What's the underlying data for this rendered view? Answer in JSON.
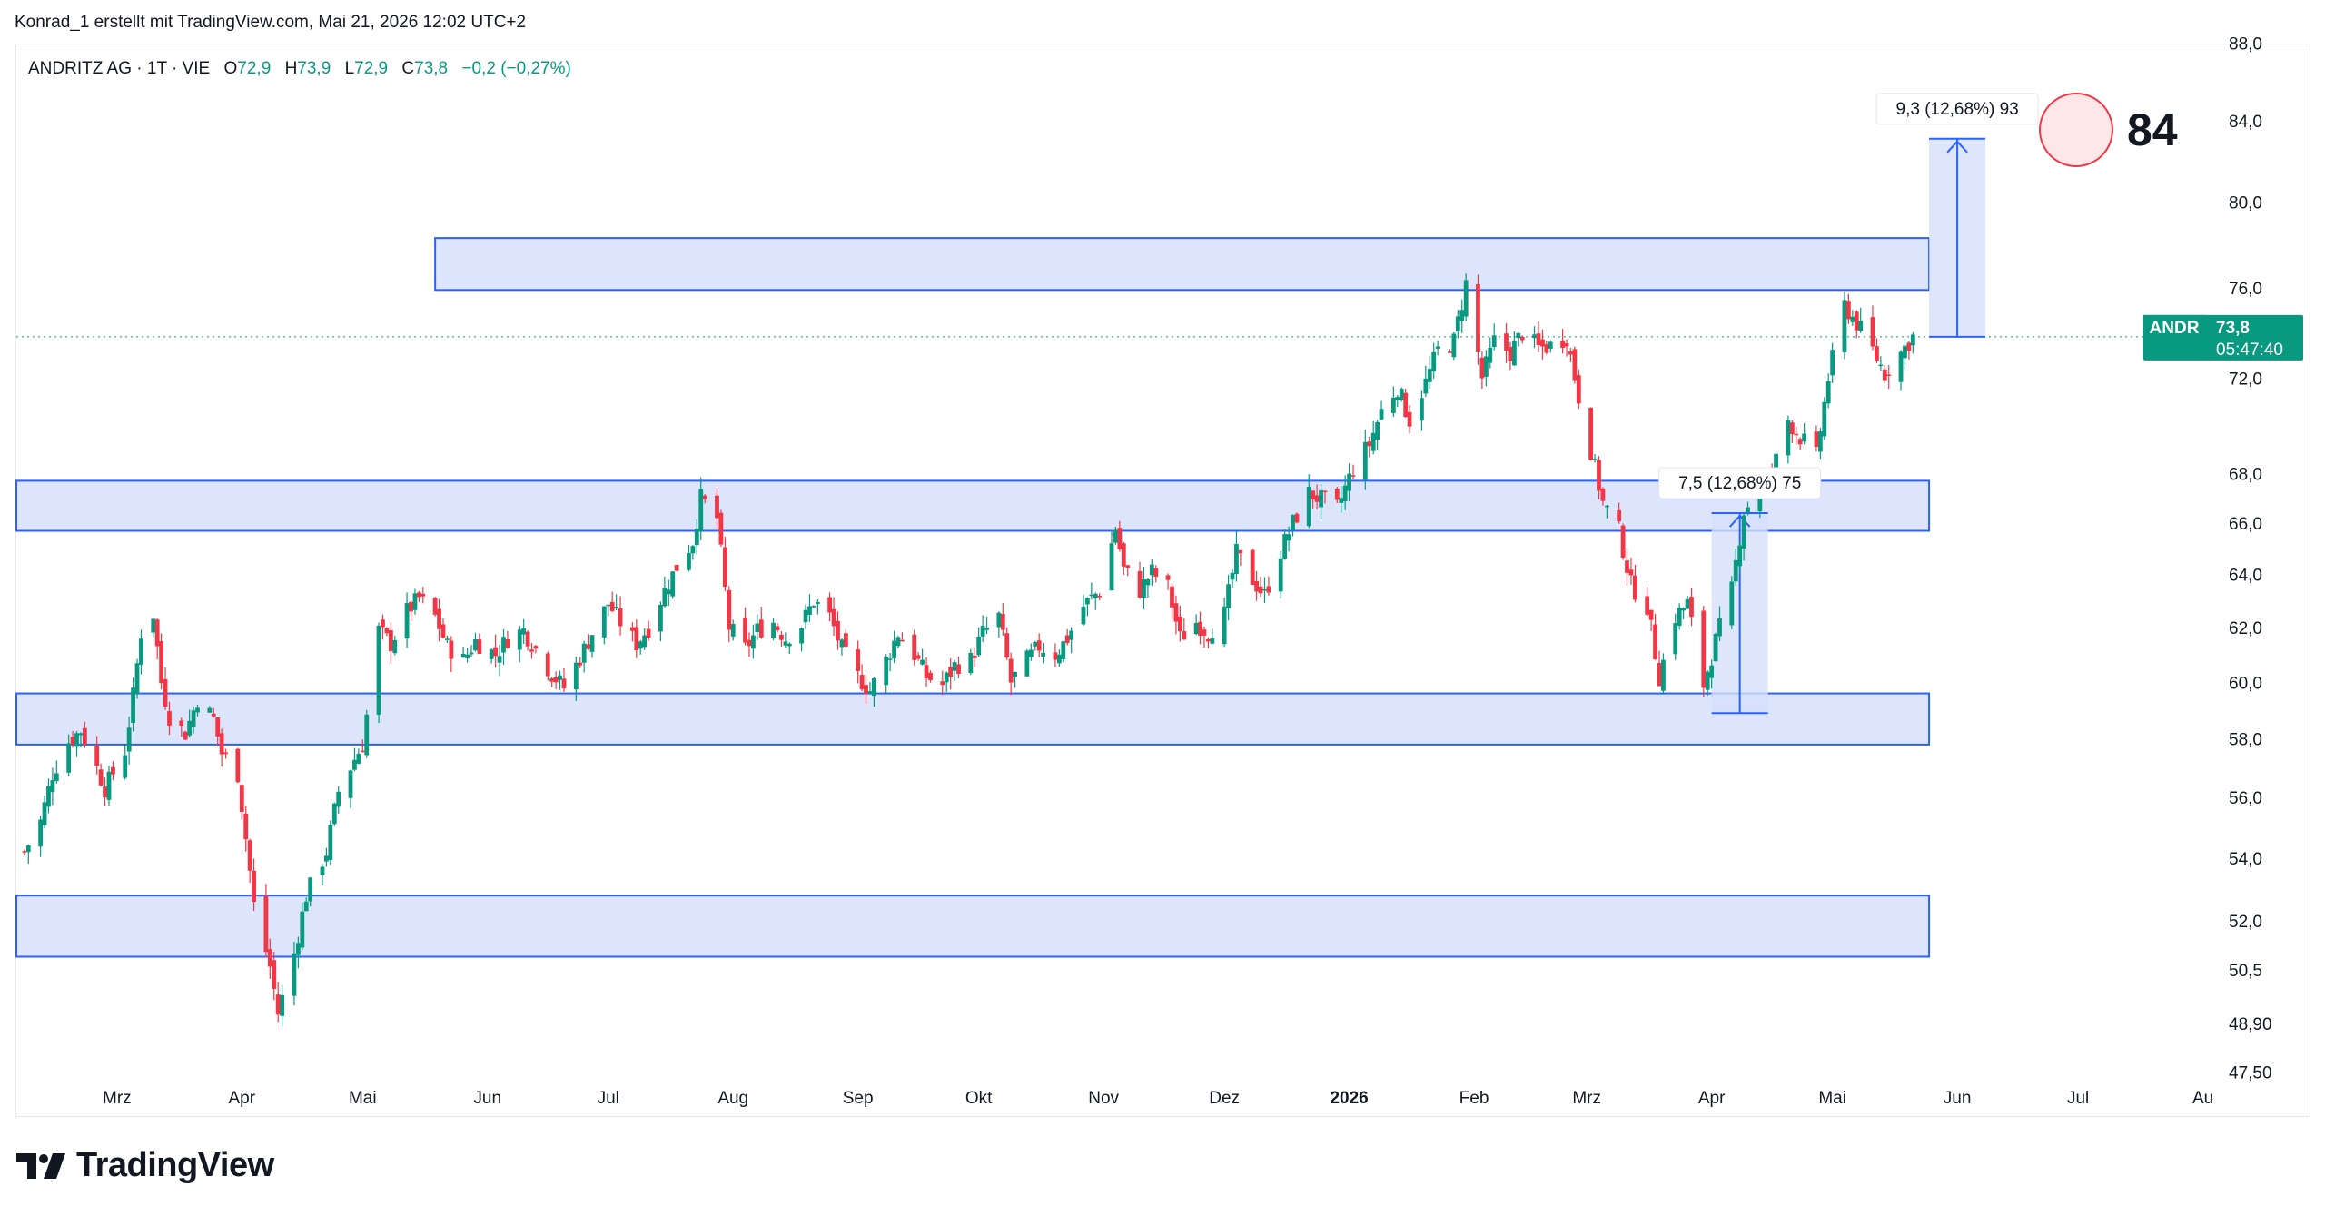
{
  "header": {
    "attribution": "Konrad_1 erstellt mit TradingView.com, Mai 21, 2026 12:02 UTC+2"
  },
  "legend": {
    "symbol": "ANDRITZ AG · 1T · VIE",
    "open_label": "O",
    "open": "72,9",
    "high_label": "H",
    "high": "73,9",
    "low_label": "L",
    "low": "72,9",
    "close_label": "C",
    "close": "73,8",
    "change": "−0,2 (−0,27%)"
  },
  "price_tag": {
    "ticker": "ANDR",
    "price": "73,8",
    "countdown": "05:47:40"
  },
  "badge_number": "84",
  "logo_text": "TradingView",
  "colors": {
    "up": "#089981",
    "down": "#f23645",
    "zone_fill": "#d6e0fb",
    "zone_border": "#2962ff",
    "measure_fill": "#d6e0fb",
    "badge_stroke": "#f23645",
    "badge_fill": "#fde7e9",
    "price_tag_bg": "#089981"
  },
  "chart_data": {
    "type": "candlestick",
    "y_axis": {
      "ticks": [
        {
          "label": "88,0",
          "value": 88.0
        },
        {
          "label": "84,0",
          "value": 84.0
        },
        {
          "label": "80,0",
          "value": 80.0
        },
        {
          "label": "76,0",
          "value": 76.0
        },
        {
          "label": "72,0",
          "value": 72.0
        },
        {
          "label": "68,0",
          "value": 68.0
        },
        {
          "label": "66,0",
          "value": 66.0
        },
        {
          "label": "64,0",
          "value": 64.0
        },
        {
          "label": "62,0",
          "value": 62.0
        },
        {
          "label": "60,0",
          "value": 60.0
        },
        {
          "label": "58,0",
          "value": 58.0
        },
        {
          "label": "56,0",
          "value": 56.0
        },
        {
          "label": "54,0",
          "value": 54.0
        },
        {
          "label": "52,0",
          "value": 52.0
        },
        {
          "label": "50,5",
          "value": 50.5
        },
        {
          "label": "48,90",
          "value": 48.9
        },
        {
          "label": "47,50",
          "value": 47.5
        }
      ],
      "scale": "log"
    },
    "x_axis": {
      "ticks": [
        {
          "label": "Mrz",
          "date": "2025-03-01",
          "bold": false
        },
        {
          "label": "Apr",
          "date": "2025-04-01",
          "bold": false
        },
        {
          "label": "Mai",
          "date": "2025-05-01",
          "bold": false
        },
        {
          "label": "Jun",
          "date": "2025-06-01",
          "bold": false
        },
        {
          "label": "Jul",
          "date": "2025-07-01",
          "bold": false
        },
        {
          "label": "Aug",
          "date": "2025-08-01",
          "bold": false
        },
        {
          "label": "Sep",
          "date": "2025-09-01",
          "bold": false
        },
        {
          "label": "Okt",
          "date": "2025-10-01",
          "bold": false
        },
        {
          "label": "Nov",
          "date": "2025-11-01",
          "bold": false
        },
        {
          "label": "Dez",
          "date": "2025-12-01",
          "bold": false
        },
        {
          "label": "2026",
          "date": "2026-01-01",
          "bold": true
        },
        {
          "label": "Feb",
          "date": "2026-02-01",
          "bold": false
        },
        {
          "label": "Mrz",
          "date": "2026-03-01",
          "bold": false
        },
        {
          "label": "Apr",
          "date": "2026-04-01",
          "bold": false
        },
        {
          "label": "Mai",
          "date": "2026-05-01",
          "bold": false
        },
        {
          "label": "Jun",
          "date": "2026-06-01",
          "bold": false
        },
        {
          "label": "Jul",
          "date": "2026-07-01",
          "bold": false
        },
        {
          "label": "Au",
          "date": "2026-08-01",
          "bold": false
        }
      ],
      "range": [
        "2025-02-04",
        "2026-08-02"
      ]
    },
    "last_price": 73.8,
    "price_series": [
      {
        "date": "2025-02-06",
        "close": 54.2
      },
      {
        "date": "2025-02-10",
        "close": 55.2
      },
      {
        "date": "2025-02-13",
        "close": 56.8
      },
      {
        "date": "2025-02-17",
        "close": 57.9
      },
      {
        "date": "2025-02-20",
        "close": 58.3
      },
      {
        "date": "2025-02-24",
        "close": 57.0
      },
      {
        "date": "2025-02-26",
        "close": 56.3
      },
      {
        "date": "2025-03-03",
        "close": 57.6
      },
      {
        "date": "2025-03-05",
        "close": 59.5
      },
      {
        "date": "2025-03-07",
        "close": 61.8
      },
      {
        "date": "2025-03-10",
        "close": 62.5
      },
      {
        "date": "2025-03-12",
        "close": 60.0
      },
      {
        "date": "2025-03-14",
        "close": 58.8
      },
      {
        "date": "2025-03-18",
        "close": 58.2
      },
      {
        "date": "2025-03-21",
        "close": 59.4
      },
      {
        "date": "2025-03-25",
        "close": 58.7
      },
      {
        "date": "2025-03-27",
        "close": 57.5
      },
      {
        "date": "2025-03-31",
        "close": 56.8
      },
      {
        "date": "2025-04-04",
        "close": 52.5
      },
      {
        "date": "2025-04-08",
        "close": 50.6
      },
      {
        "date": "2025-04-10",
        "close": 49.2
      },
      {
        "date": "2025-04-14",
        "close": 51.0
      },
      {
        "date": "2025-04-17",
        "close": 52.8
      },
      {
        "date": "2025-04-22",
        "close": 54.2
      },
      {
        "date": "2025-04-25",
        "close": 56.2
      },
      {
        "date": "2025-04-29",
        "close": 57.3
      },
      {
        "date": "2025-05-01",
        "close": 57.8
      },
      {
        "date": "2025-05-05",
        "close": 61.9
      },
      {
        "date": "2025-05-08",
        "close": 61.4
      },
      {
        "date": "2025-05-12",
        "close": 62.6
      },
      {
        "date": "2025-05-15",
        "close": 63.1
      },
      {
        "date": "2025-05-19",
        "close": 62.4
      },
      {
        "date": "2025-05-22",
        "close": 61.3
      },
      {
        "date": "2025-05-26",
        "close": 60.8
      },
      {
        "date": "2025-05-29",
        "close": 61.5
      },
      {
        "date": "2025-06-03",
        "close": 61.0
      },
      {
        "date": "2025-06-06",
        "close": 61.6
      },
      {
        "date": "2025-06-10",
        "close": 61.9
      },
      {
        "date": "2025-06-13",
        "close": 61.2
      },
      {
        "date": "2025-06-17",
        "close": 60.3
      },
      {
        "date": "2025-06-20",
        "close": 59.8
      },
      {
        "date": "2025-06-24",
        "close": 60.9
      },
      {
        "date": "2025-06-27",
        "close": 61.8
      },
      {
        "date": "2025-07-01",
        "close": 62.9
      },
      {
        "date": "2025-07-04",
        "close": 62.2
      },
      {
        "date": "2025-07-08",
        "close": 61.4
      },
      {
        "date": "2025-07-11",
        "close": 62.0
      },
      {
        "date": "2025-07-15",
        "close": 63.4
      },
      {
        "date": "2025-07-18",
        "close": 64.3
      },
      {
        "date": "2025-07-22",
        "close": 65.3
      },
      {
        "date": "2025-07-24",
        "close": 67.0
      },
      {
        "date": "2025-07-28",
        "close": 66.2
      },
      {
        "date": "2025-07-31",
        "close": 62.0
      },
      {
        "date": "2025-08-04",
        "close": 61.2
      },
      {
        "date": "2025-08-07",
        "close": 61.9
      },
      {
        "date": "2025-08-11",
        "close": 62.2
      },
      {
        "date": "2025-08-14",
        "close": 61.6
      },
      {
        "date": "2025-08-18",
        "close": 62.1
      },
      {
        "date": "2025-08-21",
        "close": 63.0
      },
      {
        "date": "2025-08-25",
        "close": 62.4
      },
      {
        "date": "2025-08-28",
        "close": 61.2
      },
      {
        "date": "2025-09-01",
        "close": 60.2
      },
      {
        "date": "2025-09-04",
        "close": 59.7
      },
      {
        "date": "2025-09-08",
        "close": 60.8
      },
      {
        "date": "2025-09-11",
        "close": 61.8
      },
      {
        "date": "2025-09-15",
        "close": 61.0
      },
      {
        "date": "2025-09-18",
        "close": 60.2
      },
      {
        "date": "2025-09-22",
        "close": 59.9
      },
      {
        "date": "2025-09-25",
        "close": 60.6
      },
      {
        "date": "2025-09-29",
        "close": 60.8
      },
      {
        "date": "2025-10-02",
        "close": 61.8
      },
      {
        "date": "2025-10-06",
        "close": 62.4
      },
      {
        "date": "2025-10-09",
        "close": 60.0
      },
      {
        "date": "2025-10-13",
        "close": 60.8
      },
      {
        "date": "2025-10-16",
        "close": 61.3
      },
      {
        "date": "2025-10-20",
        "close": 61.0
      },
      {
        "date": "2025-10-23",
        "close": 61.6
      },
      {
        "date": "2025-10-27",
        "close": 62.8
      },
      {
        "date": "2025-10-31",
        "close": 63.4
      },
      {
        "date": "2025-11-04",
        "close": 65.8
      },
      {
        "date": "2025-11-06",
        "close": 64.2
      },
      {
        "date": "2025-11-10",
        "close": 63.4
      },
      {
        "date": "2025-11-13",
        "close": 64.1
      },
      {
        "date": "2025-11-17",
        "close": 63.5
      },
      {
        "date": "2025-11-20",
        "close": 61.6
      },
      {
        "date": "2025-11-24",
        "close": 62.2
      },
      {
        "date": "2025-11-27",
        "close": 61.8
      },
      {
        "date": "2025-12-01",
        "close": 62.5
      },
      {
        "date": "2025-12-04",
        "close": 64.8
      },
      {
        "date": "2025-12-08",
        "close": 63.8
      },
      {
        "date": "2025-12-11",
        "close": 63.2
      },
      {
        "date": "2025-12-15",
        "close": 64.9
      },
      {
        "date": "2025-12-18",
        "close": 66.0
      },
      {
        "date": "2025-12-22",
        "close": 67.2
      },
      {
        "date": "2025-12-29",
        "close": 66.6
      },
      {
        "date": "2026-01-02",
        "close": 68.2
      },
      {
        "date": "2026-01-06",
        "close": 69.2
      },
      {
        "date": "2026-01-09",
        "close": 70.6
      },
      {
        "date": "2026-01-13",
        "close": 71.6
      },
      {
        "date": "2026-01-16",
        "close": 70.2
      },
      {
        "date": "2026-01-20",
        "close": 71.8
      },
      {
        "date": "2026-01-23",
        "close": 73.2
      },
      {
        "date": "2026-01-27",
        "close": 73.6
      },
      {
        "date": "2026-01-30",
        "close": 76.2
      },
      {
        "date": "2026-02-03",
        "close": 72.0
      },
      {
        "date": "2026-02-06",
        "close": 73.6
      },
      {
        "date": "2026-02-10",
        "close": 73.1
      },
      {
        "date": "2026-02-13",
        "close": 74.0
      },
      {
        "date": "2026-02-17",
        "close": 73.3
      },
      {
        "date": "2026-02-20",
        "close": 73.4
      },
      {
        "date": "2026-02-24",
        "close": 73.8
      },
      {
        "date": "2026-02-27",
        "close": 71.2
      },
      {
        "date": "2026-03-03",
        "close": 68.2
      },
      {
        "date": "2026-03-05",
        "close": 66.8
      },
      {
        "date": "2026-03-09",
        "close": 65.7
      },
      {
        "date": "2026-03-12",
        "close": 63.6
      },
      {
        "date": "2026-03-16",
        "close": 62.8
      },
      {
        "date": "2026-03-19",
        "close": 60.2
      },
      {
        "date": "2026-03-23",
        "close": 62.4
      },
      {
        "date": "2026-03-26",
        "close": 62.9
      },
      {
        "date": "2026-03-30",
        "close": 59.9
      },
      {
        "date": "2026-04-02",
        "close": 61.5
      },
      {
        "date": "2026-04-06",
        "close": 63.4
      },
      {
        "date": "2026-04-09",
        "close": 66.5
      },
      {
        "date": "2026-04-13",
        "close": 67.3
      },
      {
        "date": "2026-04-16",
        "close": 68.0
      },
      {
        "date": "2026-04-20",
        "close": 70.2
      },
      {
        "date": "2026-04-23",
        "close": 69.5
      },
      {
        "date": "2026-04-27",
        "close": 68.7
      },
      {
        "date": "2026-04-30",
        "close": 72.0
      },
      {
        "date": "2026-05-04",
        "close": 75.2
      },
      {
        "date": "2026-05-07",
        "close": 74.4
      },
      {
        "date": "2026-05-11",
        "close": 73.2
      },
      {
        "date": "2026-05-14",
        "close": 72.2
      },
      {
        "date": "2026-05-18",
        "close": 73.1
      },
      {
        "date": "2026-05-21",
        "close": 73.8
      }
    ],
    "zones": [
      {
        "from": "2025-05-19",
        "to": "2026-05-25",
        "price_low": 75.9,
        "price_high": 78.3
      },
      {
        "from": "2025-02-04",
        "to": "2026-05-25",
        "price_low": 65.7,
        "price_high": 67.7
      },
      {
        "from": "2025-02-04",
        "to": "2026-05-25",
        "price_low": 57.8,
        "price_high": 59.6
      },
      {
        "from": "2025-02-04",
        "to": "2026-05-25",
        "price_low": 50.9,
        "price_high": 52.8
      }
    ],
    "measures": [
      {
        "label": "7,5 (12,68%) 75",
        "from_date": "2026-04-01",
        "to_date": "2026-04-15",
        "price_from": 58.9,
        "price_to": 66.4
      },
      {
        "label": "9,3 (12,68%) 93",
        "from_date": "2026-05-25",
        "to_date": "2026-06-08",
        "price_from": 73.8,
        "price_to": 83.1
      }
    ]
  }
}
